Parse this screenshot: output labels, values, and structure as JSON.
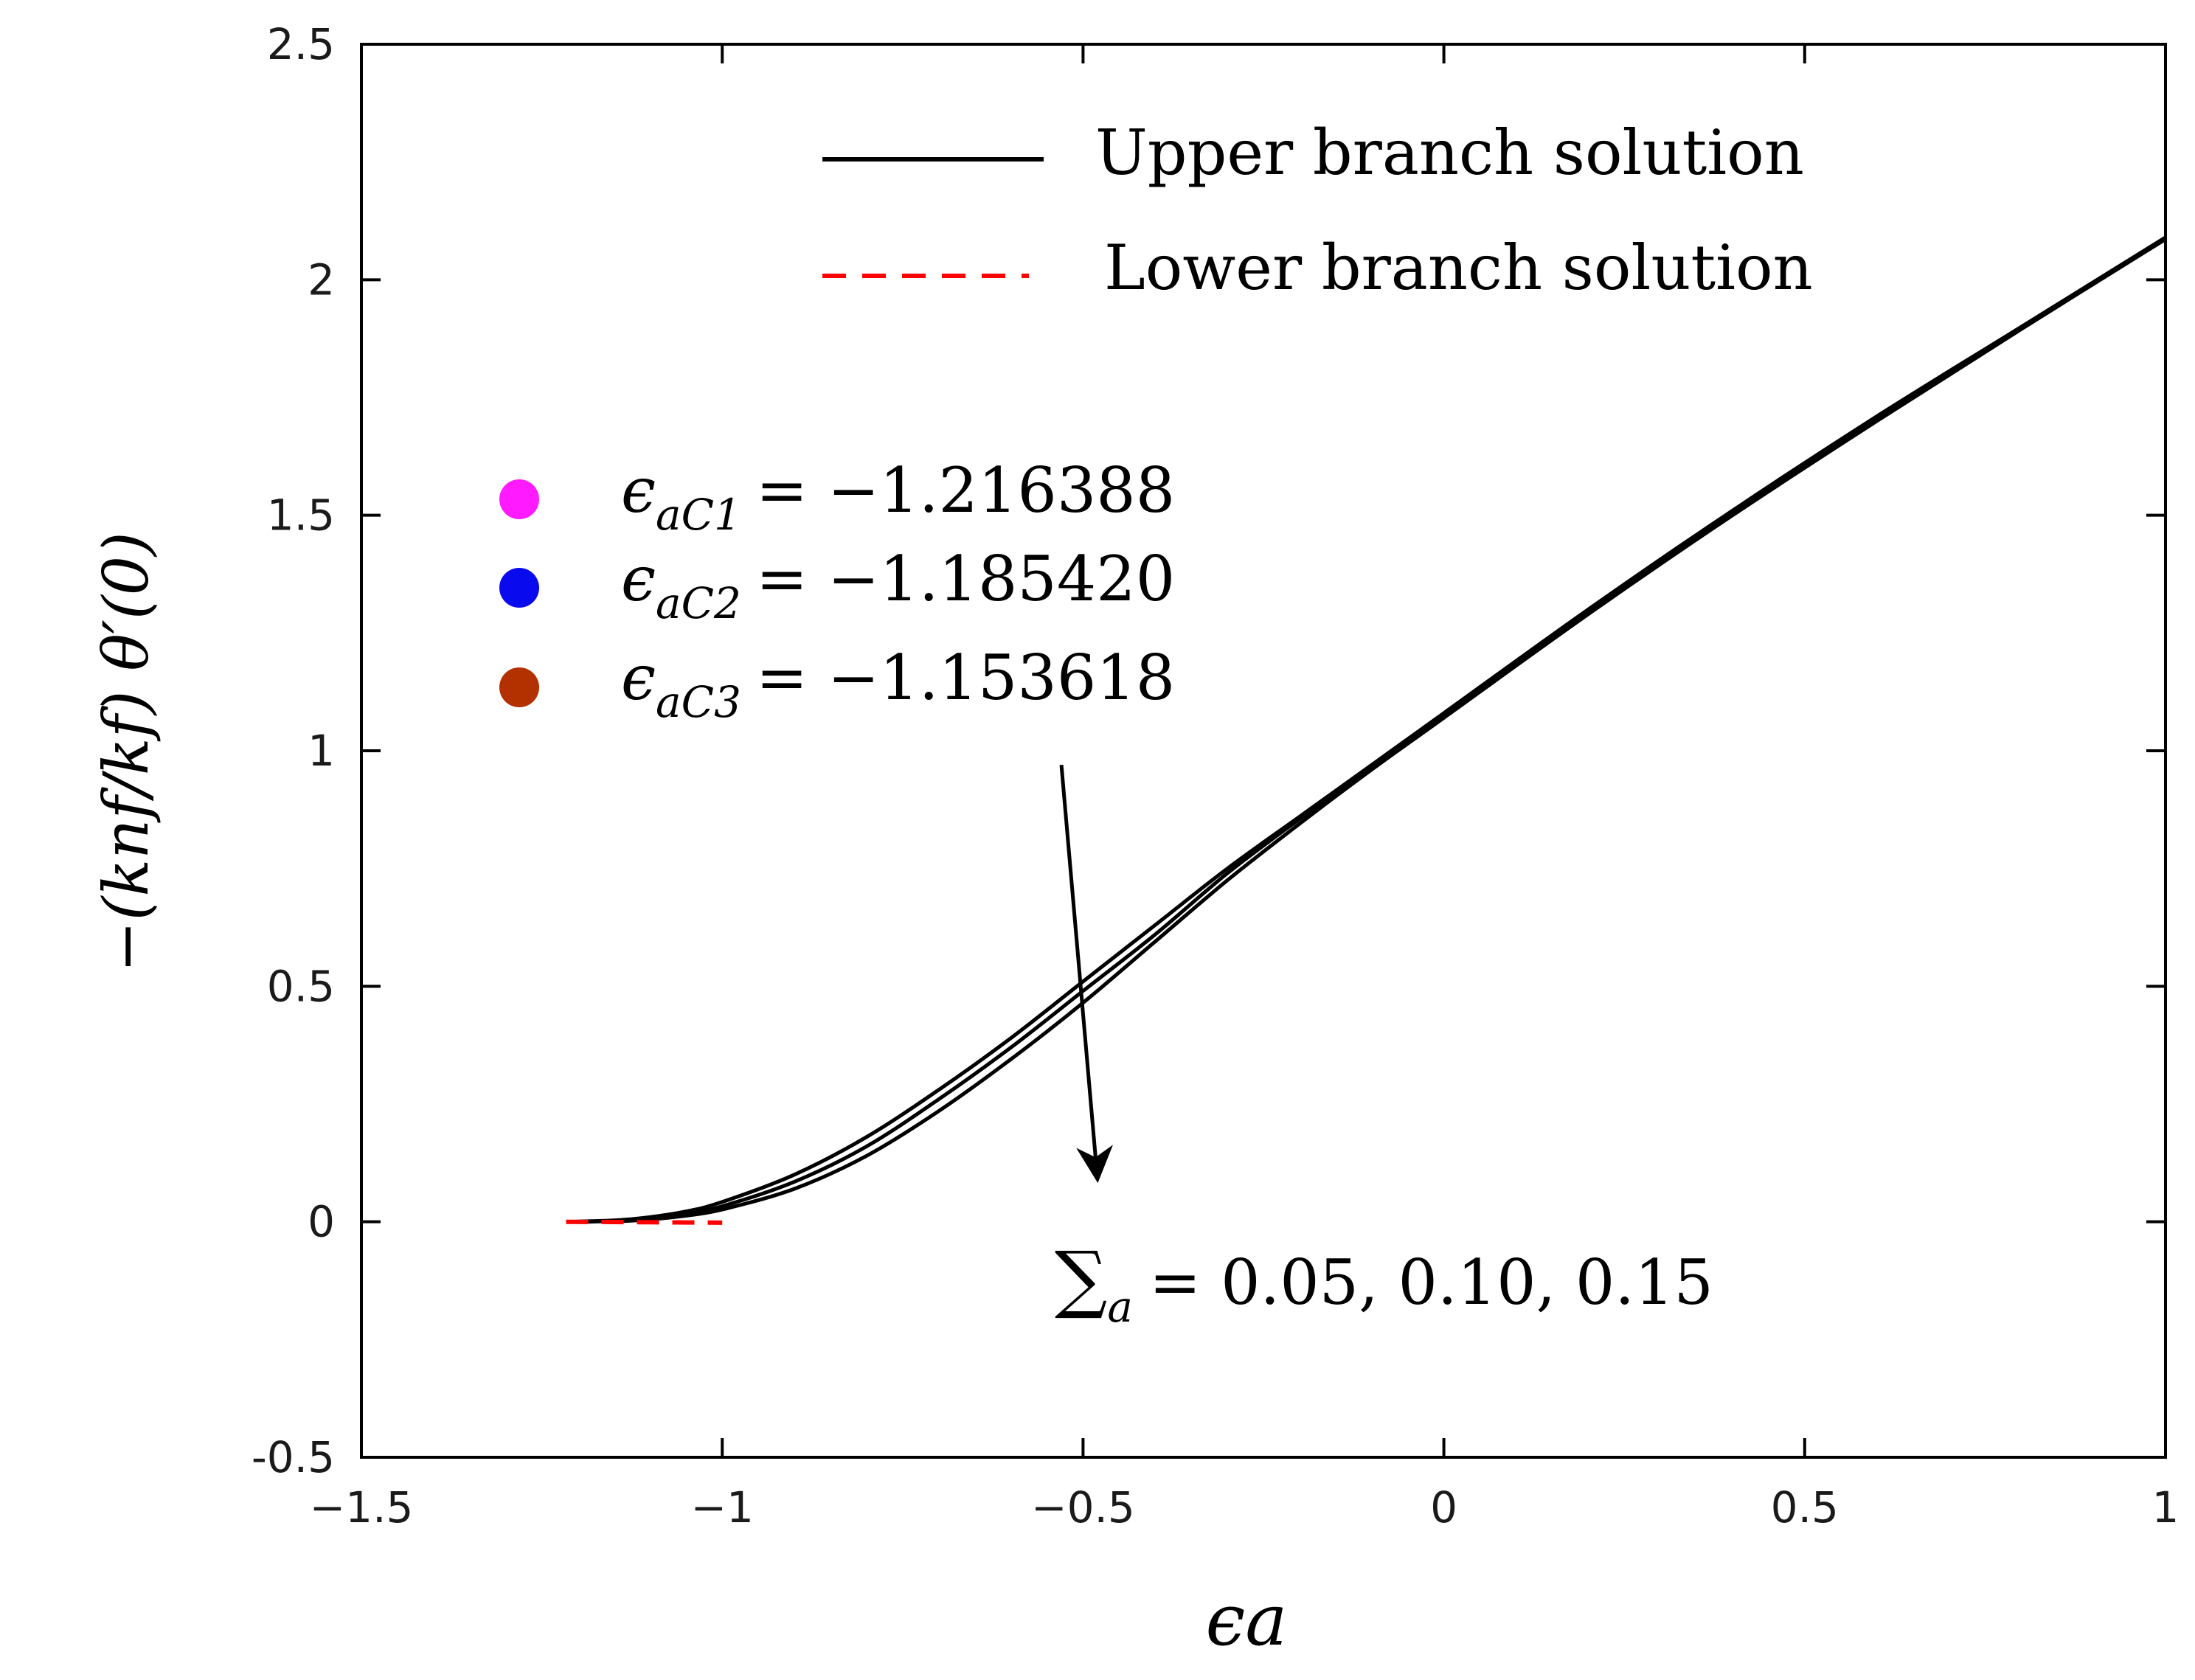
{
  "chart_data": {
    "type": "line",
    "xlabel": "ϵa",
    "ylabel": "−(knf/kf) θ′(0)",
    "xlim": [
      -1.5,
      1
    ],
    "ylim": [
      -0.5,
      2.5
    ],
    "x_ticks": [
      -1.5,
      -1,
      -0.5,
      0,
      0.5,
      1
    ],
    "x_tick_labels": [
      "−1.5",
      "−1",
      "−0.5",
      "0",
      "0.5",
      "1"
    ],
    "y_ticks": [
      -0.5,
      0,
      0.5,
      1,
      1.5,
      2,
      2.5
    ],
    "y_tick_labels": [
      "-0.5",
      "0",
      "0.5",
      "1",
      "1.5",
      "2",
      "2.5"
    ],
    "grid": false,
    "legend": {
      "placement": "top-right",
      "entries": [
        {
          "label": "Upper branch solution",
          "color": "#000000",
          "style": "solid"
        },
        {
          "label": "Lower branch solution",
          "color": "#ff0000",
          "style": "dashed"
        }
      ]
    },
    "critical_points": [
      {
        "label": "ϵaC1 = −1.216388",
        "sym": "ϵ",
        "sub": "aC1",
        "value_text": "= −1.216388",
        "x": -1.216388,
        "y": 0,
        "color": "#ff1aff"
      },
      {
        "label": "ϵaC2 = −1.185420",
        "sym": "ϵ",
        "sub": "aC2",
        "value_text": "= −1.185420",
        "x": -1.18542,
        "y": 0,
        "color": "#0a0aee"
      },
      {
        "label": "ϵaC3 = −1.153618",
        "sym": "ϵ",
        "sub": "aC3",
        "value_text": "= −1.153618",
        "x": -1.153618,
        "y": 0,
        "color": "#b33000"
      }
    ],
    "annotation": {
      "sym": "∑",
      "sub": "a",
      "value_text": "= 0.05, 0.10, 0.15",
      "arrow_from": [
        -0.53,
        0.97
      ],
      "arrow_to": [
        -0.48,
        0.09
      ]
    },
    "series": [
      {
        "branch": "upper",
        "color": "#000000",
        "x": [
          -1.216388,
          -1.15,
          -1.1,
          -1.05,
          -1.0,
          -0.9,
          -0.8,
          -0.7,
          -0.6,
          -0.5,
          -0.4,
          -0.3,
          -0.2,
          -0.1,
          0.0,
          0.2,
          0.4,
          0.6,
          0.8,
          1.0
        ],
        "y": [
          0,
          0.003,
          0.01,
          0.022,
          0.042,
          0.1,
          0.18,
          0.28,
          0.39,
          0.51,
          0.63,
          0.75,
          0.86,
          0.97,
          1.08,
          1.3,
          1.51,
          1.71,
          1.9,
          2.09
        ]
      },
      {
        "branch": "upper",
        "color": "#000000",
        "x": [
          -1.18542,
          -1.15,
          -1.1,
          -1.05,
          -1.0,
          -0.9,
          -0.8,
          -0.7,
          -0.6,
          -0.5,
          -0.4,
          -0.3,
          -0.2,
          -0.1,
          0.0,
          0.2,
          0.4,
          0.6,
          0.8,
          1.0
        ],
        "y": [
          0,
          0.002,
          0.008,
          0.017,
          0.033,
          0.085,
          0.16,
          0.26,
          0.37,
          0.49,
          0.61,
          0.74,
          0.855,
          0.965,
          1.075,
          1.295,
          1.505,
          1.705,
          1.897,
          2.088
        ]
      },
      {
        "branch": "upper",
        "color": "#000000",
        "x": [
          -1.153618,
          -1.1,
          -1.05,
          -1.0,
          -0.9,
          -0.8,
          -0.7,
          -0.6,
          -0.5,
          -0.4,
          -0.3,
          -0.2,
          -0.1,
          0.0,
          0.2,
          0.4,
          0.6,
          0.8,
          1.0
        ],
        "y": [
          0,
          0.005,
          0.013,
          0.026,
          0.07,
          0.14,
          0.235,
          0.345,
          0.465,
          0.595,
          0.725,
          0.845,
          0.96,
          1.07,
          1.29,
          1.5,
          1.7,
          1.895,
          2.086
        ]
      },
      {
        "branch": "lower",
        "color": "#ff0000",
        "x": [
          -1.216388,
          -1.15,
          -1.1,
          -1.05,
          -1.0
        ],
        "y": [
          0,
          -0.0005,
          -0.001,
          -0.0015,
          -0.002
        ]
      }
    ]
  }
}
